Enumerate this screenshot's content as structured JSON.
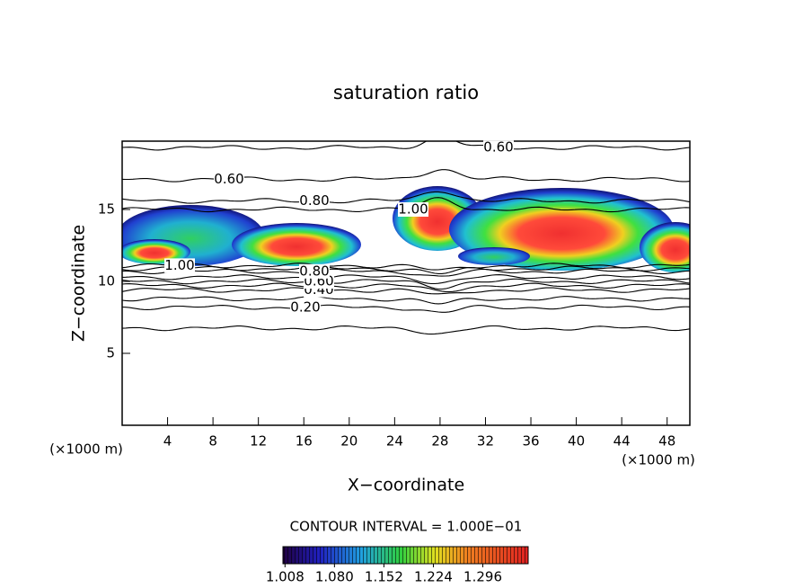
{
  "chart_data": {
    "type": "contour",
    "title": "saturation ratio",
    "xlabel": "X−coordinate",
    "ylabel": "Z−coordinate",
    "xunit": "(×1000 m)",
    "note": "CONTOUR INTERVAL = 1.000E−01",
    "xlim": [
      0,
      50
    ],
    "ylim": [
      0,
      20
    ],
    "xticks": [
      4,
      8,
      12,
      16,
      20,
      24,
      28,
      32,
      36,
      40,
      44,
      48
    ],
    "yticks": [
      5,
      10,
      15
    ],
    "contours": [
      {
        "level": 0.1,
        "z": 6.75
      },
      {
        "level": {
          "value": 0.2,
          "label": "0.20"
        },
        "z": 8.2
      },
      {
        "level": 0.3,
        "z": 8.8
      },
      {
        "level": {
          "value": 0.4,
          "label": "0.40"
        },
        "z": 9.4
      },
      {
        "level": 0.5,
        "z": 9.7
      },
      {
        "level": {
          "value": 0.6,
          "label": "0.60"
        },
        "z": 10.0
      },
      {
        "level": 0.7,
        "z": 10.3
      },
      {
        "level": {
          "value": 0.8,
          "label": "0.80"
        },
        "z": 10.7
      },
      {
        "level": 0.9,
        "z": 10.9
      },
      {
        "level": {
          "value": 1.0,
          "label": "1.00"
        },
        "z": 11.1
      },
      {
        "level": {
          "value": 1.0,
          "label": "1.00"
        },
        "z": 15.0
      },
      {
        "level": {
          "value": 0.8,
          "label": "0.80"
        },
        "z": 15.6
      },
      {
        "level": {
          "value": 0.6,
          "label": "0.60"
        },
        "z": 17.1
      },
      {
        "level": {
          "value": 0.6,
          "label": "0.60"
        },
        "z": 19.3
      }
    ],
    "colorbar": {
      "clim": [
        1.005,
        1.362
      ],
      "ticks": [
        1.008,
        {
          "value": 1.08,
          "label": "1.080"
        },
        1.152,
        1.224,
        1.296
      ]
    }
  }
}
